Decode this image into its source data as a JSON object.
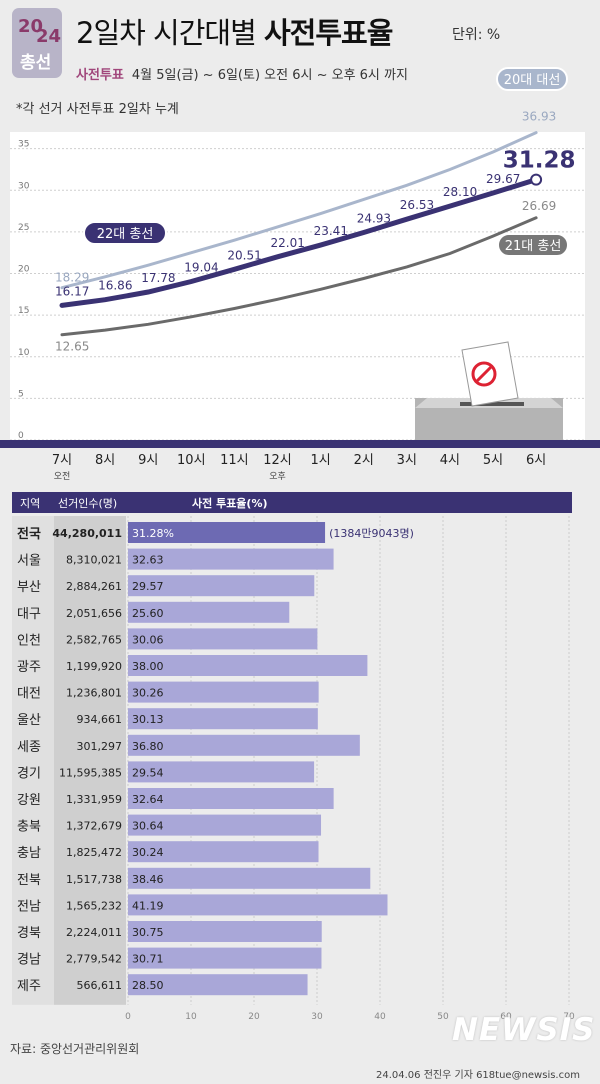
{
  "logo": {
    "year_top": "20",
    "year_bottom": "24",
    "word": "총선"
  },
  "header": {
    "title_plain": "2일차 시간대별 ",
    "title_bold": "사전투표율",
    "unit": "단위: %",
    "subtitle_label": "사전투표",
    "subtitle_text": "4월 5일(금) ~ 6일(토) 오전 6시 ~ 오후 6시 까지",
    "note": "*각 선거 사전투표 2일차 누계"
  },
  "colors": {
    "series_22": "#3a3273",
    "series_20": "#a9b6cc",
    "series_21": "#6a6a6a",
    "bar": "#a9a7d8",
    "bar_highlight": "#6d6ab3",
    "header_bg": "#3a3273"
  },
  "chart_data": [
    {
      "type": "line",
      "x": [
        "7시",
        "8시",
        "9시",
        "10시",
        "11시",
        "12시",
        "1시",
        "2시",
        "3시",
        "4시",
        "5시",
        "6시"
      ],
      "x_sublabels": {
        "7시": "오전",
        "12시": "오후"
      },
      "ylim": [
        0,
        37
      ],
      "yticks": [
        0,
        5,
        10,
        15,
        20,
        25,
        30,
        35
      ],
      "series": [
        {
          "name": "20대 대선",
          "values": [
            18.29,
            19.6,
            21.0,
            22.5,
            24.0,
            25.6,
            27.2,
            28.9,
            30.6,
            32.5,
            34.6,
            36.93
          ],
          "labeled": {
            "0": "18.29",
            "11": "36.93"
          }
        },
        {
          "name": "22대 총선",
          "values": [
            16.17,
            16.86,
            17.78,
            19.04,
            20.51,
            22.01,
            23.41,
            24.93,
            26.53,
            28.1,
            29.67,
            31.28
          ],
          "labeled": {
            "0": "16.17",
            "1": "16.86",
            "2": "17.78",
            "3": "19.04",
            "4": "20.51",
            "5": "22.01",
            "6": "23.41",
            "7": "24.93",
            "8": "26.53",
            "9": "28.10",
            "10": "29.67",
            "11": "31.28"
          }
        },
        {
          "name": "21대 총선",
          "values": [
            12.65,
            13.2,
            13.9,
            14.8,
            15.8,
            16.9,
            18.1,
            19.4,
            20.8,
            22.4,
            24.5,
            26.69
          ],
          "labeled": {
            "0": "12.65",
            "11": "26.69"
          }
        }
      ]
    },
    {
      "type": "bar",
      "header": {
        "region": "지역",
        "voters": "선거인수(명)",
        "rate": "사전 투표율(%)"
      },
      "categories": [
        "전국",
        "서울",
        "부산",
        "대구",
        "인천",
        "광주",
        "대전",
        "울산",
        "세종",
        "경기",
        "강원",
        "충북",
        "충남",
        "전북",
        "전남",
        "경북",
        "경남",
        "제주"
      ],
      "voters": [
        "44,280,011",
        "8,310,021",
        "2,884,261",
        "2,051,656",
        "2,582,765",
        "1,199,920",
        "1,236,801",
        "934,661",
        "301,297",
        "11,595,385",
        "1,331,959",
        "1,372,679",
        "1,825,472",
        "1,517,738",
        "1,565,232",
        "2,224,011",
        "2,779,542",
        "566,611"
      ],
      "values": [
        31.28,
        32.63,
        29.57,
        25.6,
        30.06,
        38.0,
        30.26,
        30.13,
        36.8,
        29.54,
        32.64,
        30.64,
        30.24,
        38.46,
        41.19,
        30.75,
        30.71,
        28.5
      ],
      "value_labels": [
        "31.28%",
        "32.63",
        "29.57",
        "25.60",
        "30.06",
        "38.00",
        "30.26",
        "30.13",
        "36.80",
        "29.54",
        "32.64",
        "30.64",
        "30.24",
        "38.46",
        "41.19",
        "30.75",
        "30.71",
        "28.50"
      ],
      "annotation": "(1384만9043명)",
      "xlim": [
        0,
        70
      ],
      "xticks": [
        0,
        10,
        20,
        30,
        40,
        50,
        60,
        70
      ]
    }
  ],
  "footer": {
    "source": "자료: 중앙선거관리위원회",
    "credit": "24.04.06 전진우 기자 618tue@newsis.com",
    "watermark": "NEWSIS"
  }
}
